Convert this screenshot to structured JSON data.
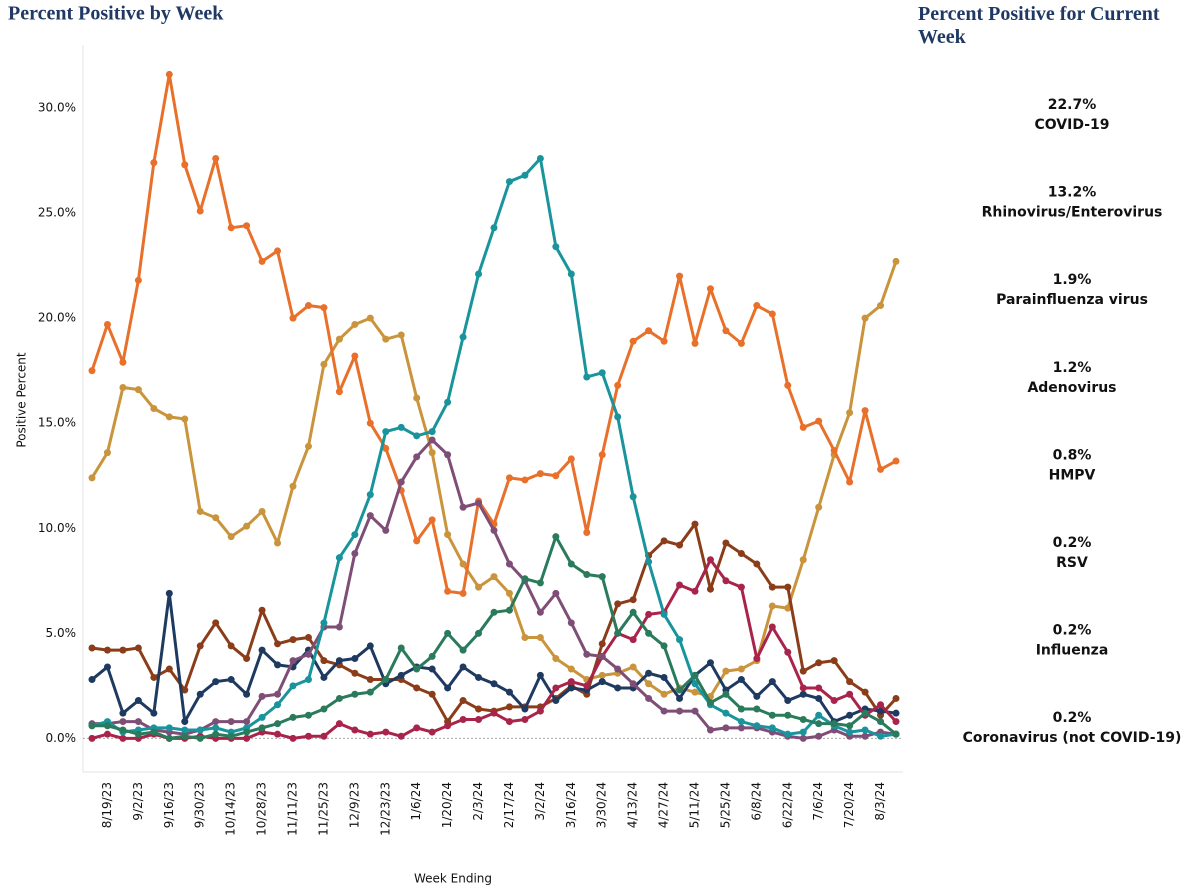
{
  "chart_data": {
    "type": "line",
    "title": "Percent Positive by Week",
    "panel_title": "Percent Positive for Current Week",
    "y_label": "Positive Percent",
    "x_label": "Week Ending",
    "categories": [
      null,
      "8/19/23",
      null,
      "9/2/23",
      null,
      "9/16/23",
      null,
      "9/30/23",
      null,
      "10/14/23",
      null,
      "10/28/23",
      null,
      "11/11/23",
      null,
      "11/25/23",
      null,
      "12/9/23",
      null,
      "12/23/23",
      null,
      "1/6/24",
      null,
      "1/20/24",
      null,
      "2/3/24",
      null,
      "2/17/24",
      null,
      "3/2/24",
      null,
      "3/16/24",
      null,
      "3/30/24",
      null,
      "4/13/24",
      null,
      "4/27/24",
      null,
      "5/11/24",
      null,
      "5/25/24",
      null,
      "6/8/24",
      null,
      "6/22/24",
      null,
      "7/6/24",
      null,
      "7/20/24",
      null,
      "8/3/24",
      null
    ],
    "ylim": [
      -1.6,
      33
    ],
    "yticks": [
      {
        "value": 0,
        "label": "0.0%"
      },
      {
        "value": 5,
        "label": "5.0%"
      },
      {
        "value": 10,
        "label": "10.0%"
      },
      {
        "value": 15,
        "label": "15.0%"
      },
      {
        "value": 20,
        "label": "20.0%"
      },
      {
        "value": 25,
        "label": "25.0%"
      },
      {
        "value": 30,
        "label": "30.0%"
      }
    ],
    "series": [
      {
        "name": "COVID-19",
        "color": "#c9943c",
        "values": [
          12.4,
          13.6,
          16.7,
          16.6,
          15.7,
          15.3,
          15.2,
          10.8,
          10.5,
          9.6,
          10.1,
          10.8,
          9.3,
          12.0,
          13.9,
          17.8,
          19.0,
          19.7,
          20.0,
          19.0,
          19.2,
          16.2,
          13.6,
          9.7,
          8.3,
          7.2,
          7.7,
          6.9,
          4.8,
          4.8,
          3.8,
          3.3,
          2.8,
          3.0,
          3.1,
          3.4,
          2.6,
          2.1,
          2.4,
          2.2,
          2.0,
          3.2,
          3.3,
          3.7,
          6.3,
          6.2,
          8.5,
          11.0,
          13.5,
          15.5,
          20.0,
          20.6,
          22.7
        ],
        "value_labels": [
          null,
          null,
          null,
          null,
          null,
          null,
          null,
          null,
          null,
          null,
          null,
          null,
          null,
          null,
          null,
          null,
          null,
          null,
          null,
          null,
          null,
          null,
          null,
          null,
          null,
          null,
          null,
          null,
          null,
          null,
          null,
          null,
          null,
          null,
          null,
          null,
          null,
          null,
          null,
          null,
          null,
          null,
          null,
          null,
          null,
          null,
          null,
          null,
          null,
          null,
          null,
          null,
          "22.7%"
        ]
      },
      {
        "name": "Rhinovirus/Enterovirus",
        "color": "#e8702a",
        "values": [
          17.5,
          19.7,
          17.9,
          21.8,
          27.4,
          31.6,
          27.3,
          25.1,
          27.6,
          24.3,
          24.4,
          22.7,
          23.2,
          20.0,
          20.6,
          20.5,
          16.5,
          18.2,
          15.0,
          13.8,
          11.8,
          9.4,
          10.4,
          7.0,
          6.9,
          11.3,
          10.2,
          12.4,
          12.3,
          12.6,
          12.5,
          13.3,
          9.8,
          13.5,
          16.8,
          18.9,
          19.4,
          18.9,
          22.0,
          18.8,
          21.4,
          19.4,
          18.8,
          20.6,
          20.2,
          16.8,
          14.8,
          15.1,
          13.7,
          12.2,
          15.6,
          12.8,
          13.2
        ],
        "value_labels": [
          null,
          null,
          null,
          null,
          null,
          null,
          null,
          null,
          null,
          null,
          null,
          null,
          null,
          null,
          null,
          null,
          null,
          null,
          null,
          null,
          null,
          null,
          null,
          null,
          null,
          null,
          null,
          null,
          null,
          null,
          null,
          null,
          null,
          null,
          null,
          null,
          null,
          null,
          null,
          null,
          null,
          null,
          null,
          null,
          null,
          null,
          null,
          null,
          null,
          null,
          null,
          null,
          "13.2%"
        ]
      },
      {
        "name": "Parainfluenza virus",
        "color": "#8b3d1a",
        "values": [
          4.3,
          4.2,
          4.2,
          4.3,
          2.9,
          3.3,
          2.3,
          4.4,
          5.5,
          4.4,
          3.8,
          6.1,
          4.5,
          4.7,
          4.8,
          3.7,
          3.5,
          3.1,
          2.8,
          2.8,
          2.8,
          2.4,
          2.1,
          0.8,
          1.8,
          1.4,
          1.3,
          1.5,
          1.5,
          1.5,
          1.9,
          2.5,
          2.1,
          4.5,
          6.4,
          6.6,
          8.7,
          9.4,
          9.2,
          10.2,
          7.1,
          9.3,
          8.8,
          8.3,
          7.2,
          7.2,
          3.2,
          3.6,
          3.7,
          2.7,
          2.2,
          1.1,
          1.9
        ],
        "value_labels": [
          null,
          null,
          null,
          null,
          null,
          null,
          null,
          null,
          null,
          null,
          null,
          null,
          null,
          null,
          null,
          null,
          null,
          null,
          null,
          null,
          null,
          null,
          null,
          null,
          null,
          null,
          null,
          null,
          null,
          null,
          null,
          null,
          null,
          null,
          null,
          null,
          null,
          null,
          null,
          null,
          null,
          null,
          null,
          null,
          null,
          null,
          null,
          null,
          null,
          null,
          null,
          null,
          "1.9%"
        ]
      },
      {
        "name": "Adenovirus",
        "color": "#1f3a60",
        "values": [
          2.8,
          3.4,
          1.2,
          1.8,
          1.2,
          6.9,
          0.8,
          2.1,
          2.7,
          2.8,
          2.1,
          4.2,
          3.5,
          3.4,
          4.2,
          2.9,
          3.7,
          3.8,
          4.4,
          2.6,
          3.0,
          3.4,
          3.3,
          2.4,
          3.4,
          2.9,
          2.6,
          2.2,
          1.4,
          3.0,
          1.8,
          2.4,
          2.3,
          2.7,
          2.4,
          2.4,
          3.1,
          2.9,
          1.9,
          3.0,
          3.6,
          2.3,
          2.8,
          2.0,
          2.7,
          1.8,
          2.1,
          1.9,
          0.8,
          1.1,
          1.4,
          1.3,
          1.2
        ],
        "value_labels": [
          null,
          null,
          null,
          null,
          null,
          null,
          null,
          null,
          null,
          null,
          null,
          null,
          null,
          null,
          null,
          null,
          null,
          null,
          null,
          null,
          null,
          null,
          null,
          null,
          null,
          null,
          null,
          null,
          null,
          null,
          null,
          null,
          null,
          null,
          null,
          null,
          null,
          null,
          null,
          null,
          null,
          null,
          null,
          null,
          null,
          null,
          null,
          null,
          null,
          null,
          null,
          null,
          "1.2%"
        ]
      },
      {
        "name": "HMPV",
        "color": "#a8244b",
        "values": [
          0.0,
          0.2,
          0.0,
          0.0,
          0.2,
          0.0,
          0.0,
          0.1,
          0.0,
          0.0,
          0.0,
          0.3,
          0.2,
          0.0,
          0.1,
          0.1,
          0.7,
          0.4,
          0.2,
          0.3,
          0.1,
          0.5,
          0.3,
          0.6,
          0.9,
          0.9,
          1.2,
          0.8,
          0.9,
          1.3,
          2.4,
          2.7,
          2.5,
          3.9,
          5.0,
          4.7,
          5.9,
          6.0,
          7.3,
          7.0,
          8.5,
          7.5,
          7.2,
          3.8,
          5.3,
          4.1,
          2.4,
          2.4,
          1.8,
          2.1,
          1.1,
          1.6,
          0.8
        ],
        "value_labels": [
          null,
          null,
          null,
          null,
          null,
          null,
          null,
          null,
          null,
          null,
          null,
          null,
          null,
          null,
          null,
          null,
          null,
          null,
          null,
          null,
          null,
          null,
          null,
          null,
          null,
          null,
          null,
          null,
          null,
          null,
          null,
          null,
          null,
          null,
          null,
          null,
          null,
          null,
          null,
          null,
          null,
          null,
          null,
          null,
          null,
          null,
          null,
          null,
          null,
          null,
          null,
          null,
          "0.8%"
        ]
      },
      {
        "name": "RSV",
        "color": "#7e4e76",
        "values": [
          0.7,
          0.7,
          0.8,
          0.8,
          0.4,
          0.3,
          0.2,
          0.4,
          0.8,
          0.8,
          0.8,
          2.0,
          2.1,
          3.7,
          4.0,
          5.3,
          5.3,
          8.8,
          10.6,
          9.9,
          12.2,
          13.4,
          14.2,
          13.5,
          11.0,
          11.2,
          9.9,
          8.3,
          7.5,
          6.0,
          6.9,
          5.5,
          4.0,
          3.9,
          3.3,
          2.6,
          1.9,
          1.3,
          1.3,
          1.3,
          0.4,
          0.5,
          0.5,
          0.5,
          0.3,
          0.1,
          0.0,
          0.1,
          0.4,
          0.1,
          0.1,
          0.3,
          0.2
        ],
        "value_labels": [
          null,
          null,
          null,
          null,
          null,
          null,
          null,
          null,
          null,
          null,
          null,
          null,
          null,
          null,
          null,
          null,
          null,
          null,
          null,
          null,
          null,
          null,
          null,
          null,
          null,
          null,
          null,
          null,
          null,
          null,
          null,
          null,
          null,
          null,
          null,
          null,
          null,
          null,
          null,
          null,
          null,
          null,
          null,
          null,
          null,
          null,
          null,
          null,
          null,
          null,
          null,
          null,
          "0.2%"
        ]
      },
      {
        "name": "Influenza",
        "color": "#1a949c",
        "values": [
          0.6,
          0.8,
          0.3,
          0.4,
          0.5,
          0.5,
          0.4,
          0.4,
          0.5,
          0.3,
          0.5,
          1.0,
          1.6,
          2.5,
          2.8,
          5.5,
          8.6,
          9.7,
          11.6,
          14.6,
          14.8,
          14.4,
          14.6,
          16.0,
          19.1,
          22.1,
          24.3,
          26.5,
          26.8,
          27.6,
          23.4,
          22.1,
          17.2,
          17.4,
          15.3,
          11.5,
          8.4,
          5.9,
          4.7,
          2.6,
          1.6,
          1.2,
          0.8,
          0.6,
          0.5,
          0.2,
          0.3,
          1.1,
          0.6,
          0.3,
          0.4,
          0.1,
          0.2
        ],
        "value_labels": [
          null,
          null,
          null,
          null,
          null,
          null,
          null,
          null,
          null,
          null,
          null,
          null,
          null,
          null,
          null,
          null,
          null,
          null,
          null,
          null,
          null,
          null,
          null,
          null,
          null,
          null,
          null,
          null,
          null,
          null,
          null,
          null,
          null,
          null,
          null,
          null,
          null,
          null,
          null,
          null,
          null,
          null,
          null,
          null,
          null,
          null,
          null,
          null,
          null,
          null,
          null,
          null,
          "0.2%"
        ]
      },
      {
        "name": "Coronavirus (not COVID-19)",
        "color": "#2a7a5c",
        "values": [
          0.6,
          0.6,
          0.4,
          0.2,
          0.3,
          0.0,
          0.1,
          0.0,
          0.2,
          0.1,
          0.3,
          0.5,
          0.7,
          1.0,
          1.1,
          1.4,
          1.9,
          2.1,
          2.2,
          2.8,
          4.3,
          3.3,
          3.9,
          5.0,
          4.2,
          5.0,
          6.0,
          6.1,
          7.6,
          7.4,
          9.6,
          8.3,
          7.8,
          7.7,
          5.0,
          6.0,
          5.0,
          4.4,
          2.3,
          3.0,
          1.7,
          2.1,
          1.4,
          1.4,
          1.1,
          1.1,
          0.9,
          0.7,
          0.7,
          0.6,
          1.2,
          0.8,
          0.2
        ],
        "value_labels": [
          null,
          null,
          null,
          null,
          null,
          null,
          null,
          null,
          null,
          null,
          null,
          null,
          null,
          null,
          null,
          null,
          null,
          null,
          null,
          null,
          null,
          null,
          null,
          null,
          null,
          null,
          null,
          null,
          null,
          null,
          null,
          null,
          null,
          null,
          null,
          null,
          null,
          null,
          null,
          null,
          null,
          null,
          null,
          null,
          null,
          null,
          null,
          null,
          null,
          null,
          null,
          null,
          "0.2%"
        ]
      }
    ]
  }
}
